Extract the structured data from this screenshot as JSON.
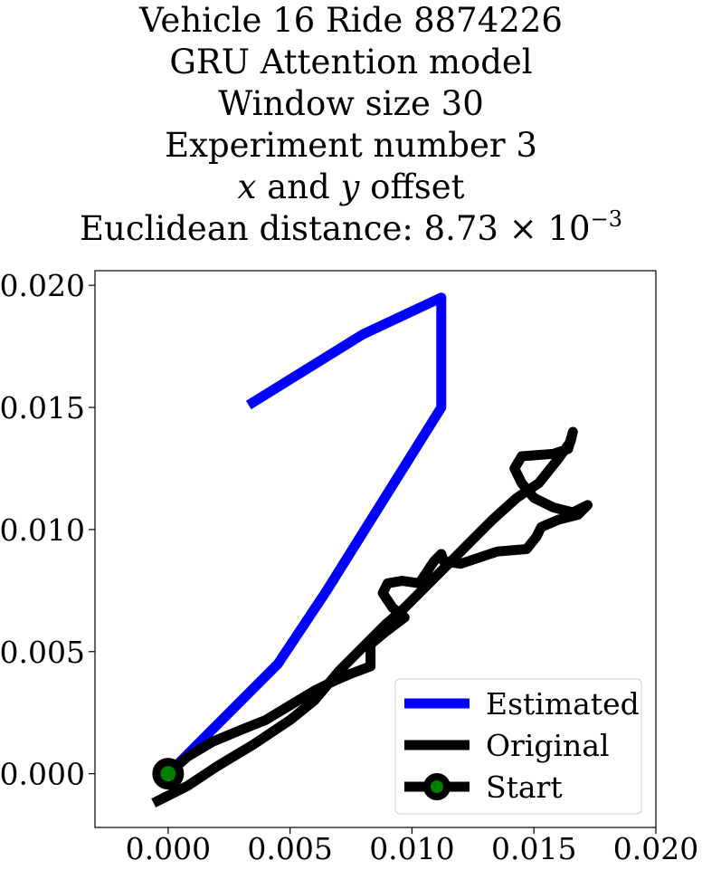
{
  "title": {
    "line1": "Vehicle 16 Ride 8874226",
    "line2": "GRU Attention model",
    "line3": "Window size 30",
    "line4": "Experiment number 3",
    "line5_x": "x",
    "line5_mid": " and ",
    "line5_y": "y",
    "line5_tail": " offset",
    "line6_text": "Euclidean distance: 8.73 × 10",
    "line6_exp": "−3"
  },
  "chart_data": {
    "type": "line",
    "xlim": [
      -0.003,
      0.02
    ],
    "ylim": [
      -0.0022,
      0.0206
    ],
    "xticks": [
      "0.000",
      "0.005",
      "0.010",
      "0.015",
      "0.020"
    ],
    "xtick_values": [
      0.0,
      0.005,
      0.01,
      0.015,
      0.02
    ],
    "yticks": [
      "0.000",
      "0.005",
      "0.010",
      "0.015",
      "0.020"
    ],
    "ytick_values": [
      0.0,
      0.005,
      0.01,
      0.015,
      0.02
    ],
    "legend_position": "lower right",
    "grid": false,
    "series": [
      {
        "name": "Estimated",
        "color": "#0000ff",
        "points": [
          [
            0.0,
            0.0
          ],
          [
            0.0045,
            0.0045
          ],
          [
            0.0065,
            0.0075
          ],
          [
            0.0112,
            0.015
          ],
          [
            0.0112,
            0.0195
          ],
          [
            0.008,
            0.018
          ],
          [
            0.0033,
            0.0151
          ]
        ]
      },
      {
        "name": "Original",
        "color": "#000000",
        "points": [
          [
            -0.0006,
            -0.0012
          ],
          [
            0.0008,
            -0.0005
          ],
          [
            0.002,
            0.0003
          ],
          [
            0.0035,
            0.0012
          ],
          [
            0.005,
            0.0022
          ],
          [
            0.006,
            0.003
          ],
          [
            0.007,
            0.0042
          ],
          [
            0.0082,
            0.0054
          ],
          [
            0.0089,
            0.0061
          ],
          [
            0.0096,
            0.0067
          ],
          [
            0.0102,
            0.0073
          ],
          [
            0.0108,
            0.0079
          ],
          [
            0.0112,
            0.0083
          ],
          [
            0.0118,
            0.0089
          ],
          [
            0.0124,
            0.0095
          ],
          [
            0.0133,
            0.0104
          ],
          [
            0.0143,
            0.0113
          ],
          [
            0.0152,
            0.0119
          ],
          [
            0.016,
            0.0129
          ],
          [
            0.0165,
            0.0136
          ],
          [
            0.0166,
            0.014
          ],
          [
            0.0164,
            0.0133
          ],
          [
            0.0158,
            0.0131
          ],
          [
            0.0145,
            0.013
          ],
          [
            0.0142,
            0.0125
          ],
          [
            0.0145,
            0.0119
          ],
          [
            0.015,
            0.0113
          ],
          [
            0.0158,
            0.0109
          ],
          [
            0.0166,
            0.0107
          ],
          [
            0.0172,
            0.011
          ],
          [
            0.0168,
            0.0106
          ],
          [
            0.016,
            0.0104
          ],
          [
            0.0153,
            0.0101
          ],
          [
            0.0151,
            0.0097
          ],
          [
            0.0147,
            0.0092
          ],
          [
            0.0135,
            0.0091
          ],
          [
            0.0126,
            0.0088
          ],
          [
            0.012,
            0.0086
          ],
          [
            0.0113,
            0.0087
          ],
          [
            0.0112,
            0.009
          ],
          [
            0.0109,
            0.0087
          ],
          [
            0.0103,
            0.0078
          ],
          [
            0.0096,
            0.0079
          ],
          [
            0.009,
            0.0078
          ],
          [
            0.0088,
            0.0074
          ],
          [
            0.0092,
            0.0068
          ],
          [
            0.0097,
            0.0064
          ],
          [
            0.0089,
            0.0058
          ],
          [
            0.0083,
            0.0053
          ],
          [
            0.0083,
            0.0044
          ],
          [
            0.0075,
            0.0041
          ],
          [
            0.0068,
            0.0038
          ],
          [
            0.006,
            0.0034
          ],
          [
            0.005,
            0.0028
          ],
          [
            0.004,
            0.0022
          ],
          [
            0.003,
            0.0018
          ],
          [
            0.0018,
            0.0013
          ],
          [
            0.0008,
            0.0007
          ],
          [
            0.0,
            0.0
          ]
        ]
      }
    ],
    "start_marker": {
      "name": "Start",
      "x": 0.0,
      "y": 0.0,
      "edge_color": "#000000",
      "face_color": "#008000"
    }
  }
}
